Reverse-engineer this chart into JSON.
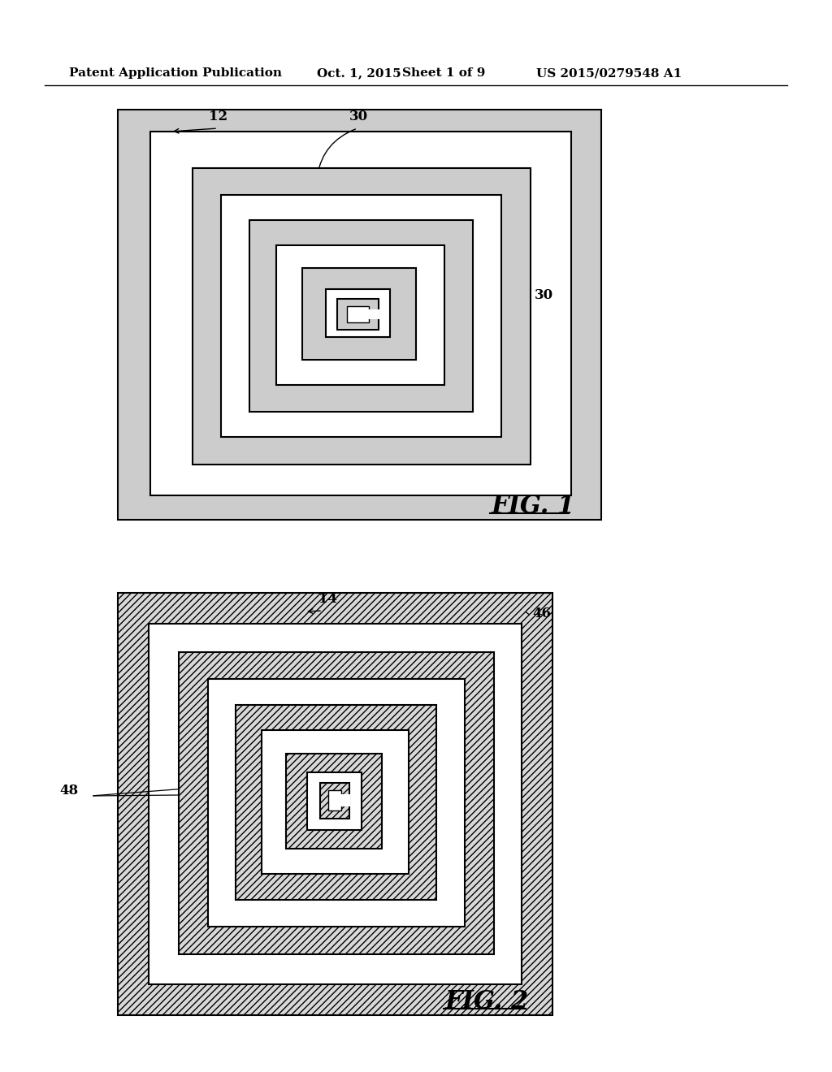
{
  "bg_color": "#ffffff",
  "header_text": "Patent Application Publication",
  "header_date": "Oct. 1, 2015",
  "header_sheet": "Sheet 1 of 9",
  "header_patent": "US 2015/0279548 A1",
  "fig1_label": "FIG. 1",
  "fig2_label": "FIG. 2",
  "dot_fill": "#cccccc",
  "hatch_fill": "#d8d8d8",
  "white": "#ffffff",
  "black": "#000000"
}
